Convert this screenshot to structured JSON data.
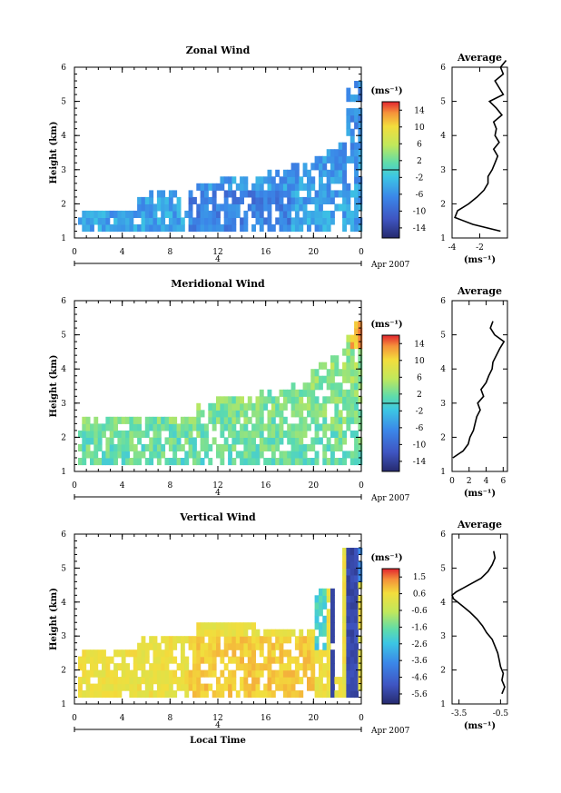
{
  "chart_data": [
    {
      "type": "heatmap",
      "title": "Zonal Wind",
      "xlabel": "",
      "ylabel": "Height (km)",
      "x_ticks": [
        "0",
        "4",
        "8",
        "12",
        "16",
        "20",
        "0"
      ],
      "y_ticks": [
        "1",
        "2",
        "3",
        "4",
        "5",
        "6"
      ],
      "ylim": [
        1,
        6
      ],
      "xlim": [
        0,
        24
      ],
      "date_day": "4",
      "date_label": "Apr 2007",
      "unit": "(ms⁻¹)",
      "colorbar_ticks": [
        "14",
        "10",
        "6",
        "2",
        "-2",
        "-6",
        "-10",
        "-14"
      ],
      "clim": [
        -16,
        16
      ],
      "profile": {
        "title": "Average",
        "xlabel": "(ms⁻¹)",
        "x_ticks": [
          "-4",
          "-2"
        ],
        "xlim": [
          -4,
          0
        ],
        "height": [
          1.2,
          1.4,
          1.6,
          1.8,
          2.0,
          2.2,
          2.4,
          2.6,
          2.8,
          3.0,
          3.2,
          3.4,
          3.6,
          3.8,
          4.0,
          4.2,
          4.4,
          4.6,
          4.8,
          5.0,
          5.2,
          5.4,
          5.6,
          5.8,
          6.0,
          6.2
        ],
        "values": [
          -0.5,
          -2.5,
          -3.8,
          -3.6,
          -2.8,
          -2.2,
          -1.7,
          -1.4,
          -1.4,
          -1.1,
          -0.9,
          -0.7,
          -1.0,
          -0.6,
          -0.9,
          -0.8,
          -1.0,
          -0.4,
          -0.8,
          -1.3,
          -0.3,
          -0.6,
          -0.9,
          -0.3,
          -0.5,
          -0.1
        ]
      }
    },
    {
      "type": "heatmap",
      "title": "Meridional Wind",
      "xlabel": "",
      "ylabel": "Height (km)",
      "x_ticks": [
        "0",
        "4",
        "8",
        "12",
        "16",
        "20",
        "0"
      ],
      "y_ticks": [
        "1",
        "2",
        "3",
        "4",
        "5",
        "6"
      ],
      "ylim": [
        1,
        6
      ],
      "xlim": [
        0,
        24
      ],
      "date_day": "4",
      "date_label": "Apr 2007",
      "unit": "(ms⁻¹)",
      "colorbar_ticks": [
        "14",
        "10",
        "6",
        "2",
        "-2",
        "-6",
        "-10",
        "-14"
      ],
      "clim": [
        -16,
        16
      ],
      "profile": {
        "title": "Average",
        "xlabel": "(ms⁻¹)",
        "x_ticks": [
          "0",
          "2",
          "4",
          "6"
        ],
        "xlim": [
          0,
          6.5
        ],
        "height": [
          1.4,
          1.6,
          1.8,
          2.0,
          2.2,
          2.4,
          2.6,
          2.8,
          3.0,
          3.2,
          3.4,
          3.6,
          3.8,
          4.0,
          4.2,
          4.4,
          4.6,
          4.8,
          5.0,
          5.2,
          5.4
        ],
        "values": [
          0.1,
          1.3,
          1.9,
          2.1,
          2.5,
          2.7,
          2.9,
          3.3,
          3.0,
          3.7,
          3.4,
          4.0,
          4.3,
          4.7,
          4.8,
          5.2,
          5.6,
          6.1,
          5.0,
          4.5,
          4.8
        ]
      }
    },
    {
      "type": "heatmap",
      "title": "Vertical Wind",
      "xlabel": "Local Time",
      "ylabel": "Height (km)",
      "x_ticks": [
        "0",
        "4",
        "8",
        "12",
        "16",
        "20",
        "0"
      ],
      "y_ticks": [
        "1",
        "2",
        "3",
        "4",
        "5",
        "6"
      ],
      "ylim": [
        1,
        6
      ],
      "xlim": [
        0,
        24
      ],
      "date_day": "4",
      "date_label": "Apr 2007",
      "unit": "(ms⁻¹)",
      "colorbar_ticks": [
        "1.5",
        "0.6",
        "-0.6",
        "-1.6",
        "-2.6",
        "-3.6",
        "-4.6",
        "-5.6"
      ],
      "clim": [
        -6.1,
        2.0
      ],
      "profile": {
        "title": "Average",
        "xlabel": "(ms⁻¹)",
        "x_ticks": [
          "-3.5",
          "-0.5"
        ],
        "xlim": [
          -4,
          0
        ],
        "height": [
          1.3,
          1.5,
          1.7,
          1.9,
          2.1,
          2.3,
          2.5,
          2.7,
          2.9,
          3.1,
          3.3,
          3.5,
          3.7,
          3.9,
          4.1,
          4.2,
          4.3,
          4.5,
          4.7,
          4.9,
          5.1,
          5.3,
          5.5
        ],
        "values": [
          -0.4,
          -0.2,
          -0.4,
          -0.3,
          -0.5,
          -0.6,
          -0.7,
          -0.9,
          -1.1,
          -1.5,
          -1.8,
          -2.2,
          -2.7,
          -3.3,
          -3.9,
          -4.0,
          -3.7,
          -2.8,
          -1.9,
          -1.4,
          -1.1,
          -0.9,
          -1.0
        ]
      }
    }
  ]
}
